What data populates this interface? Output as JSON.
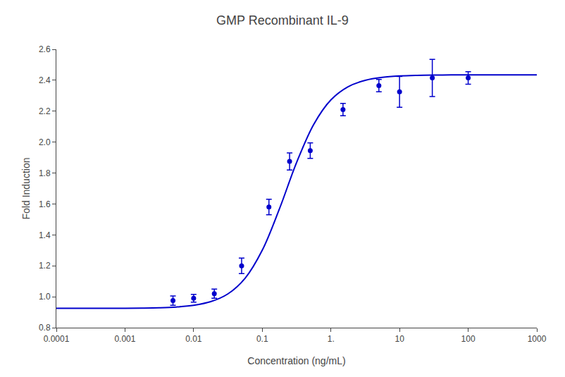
{
  "chart_data": {
    "type": "scatter",
    "title": "GMP Recombinant IL-9",
    "xlabel": "Concentration (ng/mL)",
    "ylabel": "Fold Induction",
    "log": "x",
    "grid": false,
    "xlim": [
      0.0001,
      1000
    ],
    "ylim": [
      0.8,
      2.6
    ],
    "xticks": [
      0.0001,
      0.001,
      0.01,
      0.1,
      {
        "value": 1.0,
        "label": "1."
      },
      10,
      100,
      1000
    ],
    "yticks": [
      0.8,
      {
        "value": 1.0,
        "label": "1.0"
      },
      1.2,
      1.4,
      1.6,
      1.8,
      {
        "value": 2.0,
        "label": "2.0"
      },
      2.2,
      2.4,
      2.6
    ],
    "series": [
      {
        "type": "line",
        "color": "#0000CC",
        "x": [
          0.0001,
          0.000177828,
          0.000316228,
          0.000562341,
          0.001,
          0.00177828,
          0.00316228,
          0.00562341,
          0.01,
          0.0177828,
          0.0316228,
          0.0562341,
          0.1,
          0.177828,
          0.316228,
          0.562341,
          1,
          1.77828,
          3.16228,
          5.62341,
          10,
          17.7828,
          31.6228,
          56.2341,
          100,
          177.828,
          316.228,
          562.341,
          1000
        ],
        "values": [
          0.92503,
          0.92507,
          0.92516,
          0.92535,
          0.92579,
          0.92677,
          0.92897,
          0.93385,
          0.94468,
          0.96835,
          1.01871,
          1.11982,
          1.30105,
          1.56837,
          1.86778,
          2.11511,
          2.27315,
          2.35815,
          2.39967,
          2.41901,
          2.42782,
          2.43178,
          2.43356,
          2.43436,
          2.43471,
          2.43487,
          2.43494,
          2.43497,
          2.43499
        ]
      },
      {
        "type": "scatter",
        "color": "#0000CC",
        "marker": "circle",
        "x": [
          0.005,
          0.01,
          0.02,
          0.05,
          0.125,
          0.25,
          0.5,
          1.5,
          5.0,
          10.0,
          30.0,
          100.0
        ],
        "values": [
          0.975,
          0.99,
          1.02,
          1.2,
          1.58,
          1.875,
          1.945,
          2.21,
          2.365,
          2.325,
          2.415,
          2.415
        ],
        "yerr": [
          0.03,
          0.025,
          0.03,
          0.05,
          0.05,
          0.055,
          0.05,
          0.04,
          0.04,
          0.1,
          0.12,
          0.04
        ]
      }
    ]
  }
}
